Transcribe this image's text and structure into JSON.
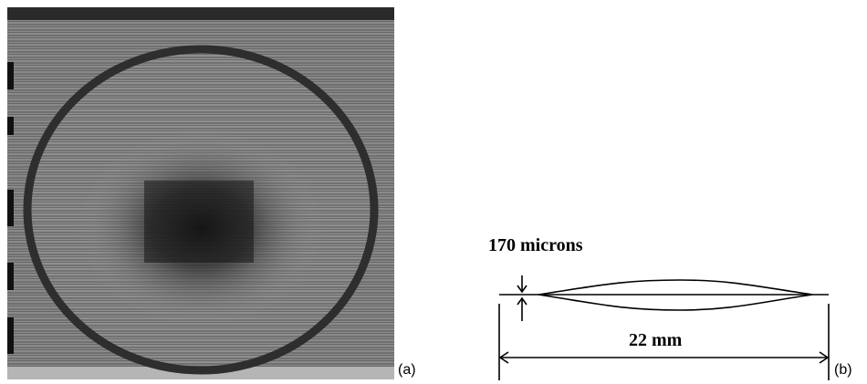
{
  "panels": {
    "a": {
      "label": "(a)"
    },
    "b": {
      "label": "(b)",
      "thickness_label": "170 microns",
      "width_label": "22 mm"
    }
  },
  "colors": {
    "background": "#ffffff",
    "ink": "#000000",
    "photo_gray": "#8a8a8a"
  }
}
